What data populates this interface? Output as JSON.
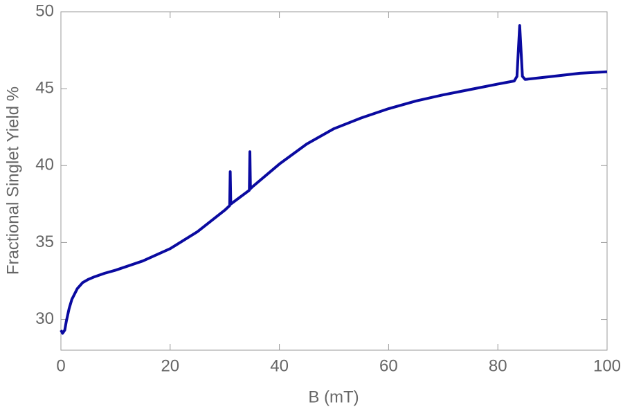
{
  "chart_data": {
    "type": "line",
    "xlabel": "B (mT)",
    "ylabel": "Fractional Singlet Yield %",
    "x": [
      0,
      0.3,
      0.7,
      1,
      1.5,
      2,
      3,
      4,
      5,
      6,
      8,
      10,
      15,
      20,
      25,
      30,
      30.9,
      31.0,
      31.1,
      34.5,
      34.6,
      34.7,
      35,
      40,
      45,
      50,
      55,
      60,
      65,
      70,
      75,
      80,
      83,
      83.5,
      84,
      84.5,
      85,
      90,
      95,
      100
    ],
    "series": [
      {
        "name": "Fractional Singlet Yield",
        "color": "#0a0aa0",
        "values": [
          29.3,
          29.1,
          29.3,
          29.9,
          30.7,
          31.3,
          32.0,
          32.4,
          32.6,
          32.75,
          33.0,
          33.2,
          33.8,
          34.6,
          35.7,
          37.1,
          37.4,
          39.6,
          37.5,
          38.4,
          40.9,
          38.5,
          38.6,
          40.1,
          41.4,
          42.4,
          43.1,
          43.7,
          44.2,
          44.6,
          44.95,
          45.3,
          45.5,
          45.8,
          49.1,
          45.8,
          45.6,
          45.8,
          46.0,
          46.1
        ]
      }
    ],
    "xlim": [
      0,
      100
    ],
    "xticks": [
      0,
      20,
      40,
      60,
      80,
      100
    ],
    "ylim": [
      28,
      50
    ],
    "yticks": [
      30,
      35,
      40,
      45,
      50
    ]
  }
}
